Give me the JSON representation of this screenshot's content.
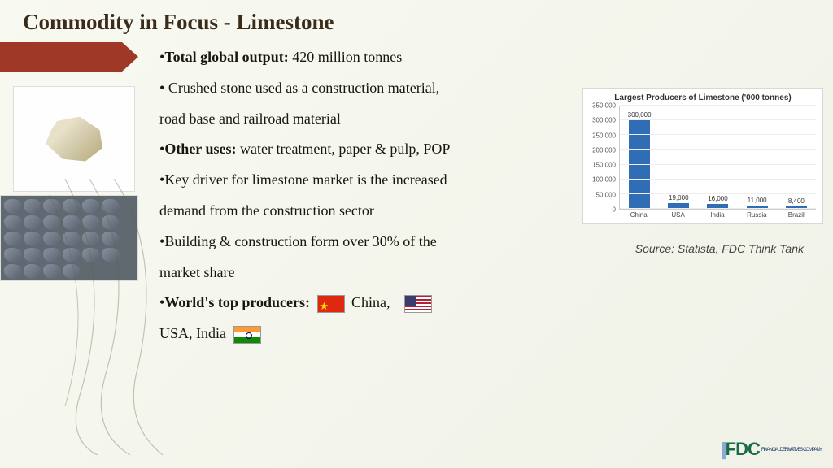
{
  "title": "Commodity in  Focus -  Limestone",
  "bullets": {
    "b1_bold": "Total global output:",
    "b1_rest": " 420 million tonnes",
    "b2": " Crushed stone used as a construction material, road base and railroad material",
    "b3_bold": "Other uses:",
    "b3_rest": " water treatment, paper & pulp, POP",
    "b4": "Key driver for limestone market is the increased demand from the construction sector",
    "b5": "Building & construction form over 30% of the market share",
    "b6_bold": "World's top producers:",
    "b6_c1": " China,",
    "b6_c2": " USA, India"
  },
  "chart": {
    "title": "Largest Producers of Limestone ('000 tonnes)",
    "ymax": 350000,
    "yticks": [
      0,
      50000,
      100000,
      150000,
      200000,
      250000,
      300000,
      350000
    ],
    "ytick_labels": [
      "0",
      "50,000",
      "100,000",
      "150,000",
      "200,000",
      "250,000",
      "300,000",
      "350,000"
    ],
    "categories": [
      "China",
      "USA",
      "India",
      "Russia",
      "Brazil"
    ],
    "values": [
      300000,
      19000,
      16000,
      11000,
      8400
    ],
    "value_labels": [
      "300,000",
      "19,000",
      "16,000",
      "11,000",
      "8,400"
    ],
    "bar_color": "#2f6db5",
    "grid_color": "#eeeeee"
  },
  "source": "Source: Statista, FDC Think Tank",
  "logo": {
    "text": "FDC",
    "tag": "FINANCIAL DERIVATIVES COMPANY"
  },
  "colors": {
    "arrow": "#a03828",
    "title": "#3a2b1a"
  }
}
